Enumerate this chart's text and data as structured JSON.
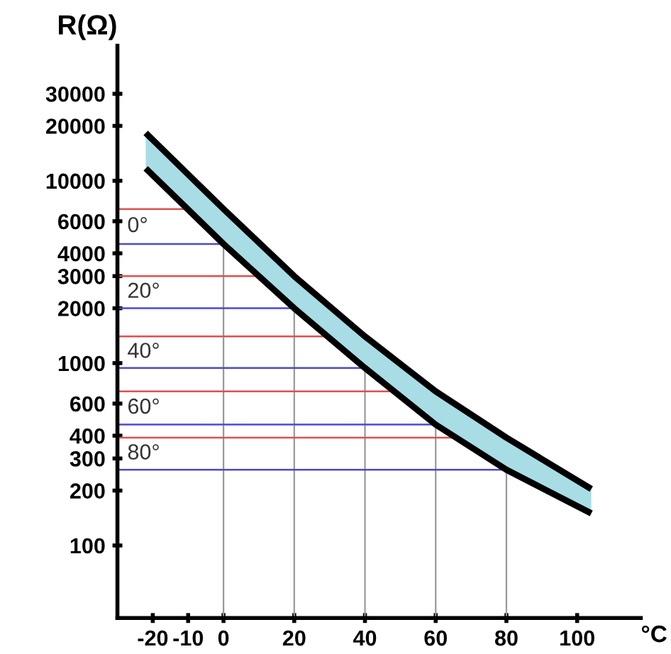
{
  "chart_data": {
    "type": "line",
    "ylabel": "R(Ω)",
    "xlabel": "°C",
    "log": "y",
    "xlim": [
      -30,
      118
    ],
    "xticks": [
      -20,
      -10,
      0,
      20,
      40,
      60,
      80,
      100
    ],
    "ylim": [
      40,
      55000
    ],
    "yticks": [
      100,
      200,
      300,
      400,
      600,
      1000,
      2000,
      3000,
      4000,
      6000,
      10000,
      20000,
      30000
    ],
    "series": [
      {
        "color": "#000000",
        "x": [
          -22,
          0,
          20,
          40,
          60,
          80,
          104
        ],
        "values": [
          18300,
          7000,
          3000,
          1400,
          700,
          390,
          204
        ],
        "lower": [
          11700,
          4500,
          2000,
          940,
          460,
          260,
          150
        ],
        "upper": [
          18300,
          7000,
          3000,
          1400,
          700,
          390,
          204
        ]
      },
      {
        "color": "#000000",
        "x": [
          -22,
          0,
          20,
          40,
          60,
          80,
          104
        ],
        "values": [
          11700,
          4500,
          2000,
          940,
          460,
          260,
          150
        ]
      }
    ],
    "ref_lines": [
      {
        "axis": "x",
        "value": 0,
        "color": "#999999"
      },
      {
        "axis": "x",
        "value": 20,
        "color": "#999999"
      },
      {
        "axis": "x",
        "value": 40,
        "color": "#999999"
      },
      {
        "axis": "x",
        "value": 60,
        "color": "#999999"
      },
      {
        "axis": "x",
        "value": 80,
        "color": "#999999"
      },
      {
        "axis": "y",
        "value": 7000,
        "color": "#e05050"
      },
      {
        "axis": "y",
        "value": 4500,
        "color": "#4a4ad0"
      },
      {
        "axis": "y",
        "value": 3000,
        "color": "#e05050"
      },
      {
        "axis": "y",
        "value": 2000,
        "color": "#4a4ad0"
      },
      {
        "axis": "y",
        "value": 1400,
        "color": "#e05050"
      },
      {
        "axis": "y",
        "value": 940,
        "color": "#4a4ad0"
      },
      {
        "axis": "y",
        "value": 700,
        "color": "#e05050"
      },
      {
        "axis": "y",
        "value": 460,
        "color": "#4a4ad0"
      },
      {
        "axis": "y",
        "value": 390,
        "color": "#e05050"
      },
      {
        "axis": "y",
        "value": 260,
        "color": "#4a4ad0"
      }
    ],
    "annotations": [
      "0°",
      "20°",
      "40°",
      "60°",
      "80°"
    ],
    "grid": false
  }
}
